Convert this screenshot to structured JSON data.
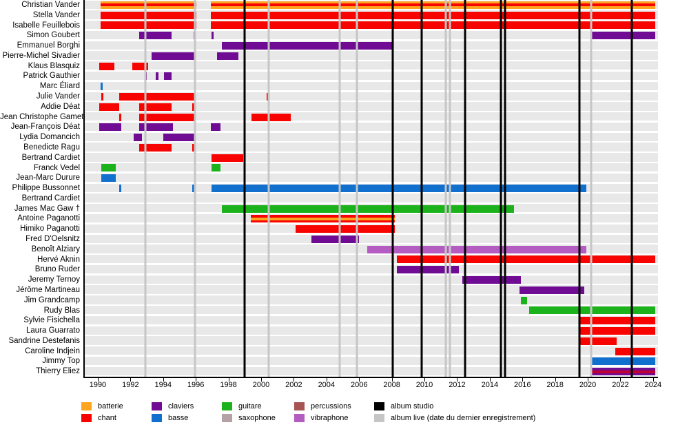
{
  "chart_data": {
    "type": "bar",
    "subtype": "gantt-membership-timeline",
    "title": "",
    "xlabel": "",
    "ylabel": "",
    "x_range": [
      1989.2,
      2024.3
    ],
    "x_ticks": [
      1990,
      1992,
      1994,
      1996,
      1998,
      2000,
      2002,
      2004,
      2006,
      2008,
      2010,
      2012,
      2014,
      2016,
      2018,
      2020,
      2022,
      2024
    ],
    "grid": false,
    "colors": {
      "batterie": "#FFA41E",
      "chant": "#F80400",
      "claviers": "#700B93",
      "basse": "#1170CE",
      "guitare": "#1CB21C",
      "saxophone": "#B4A2A6",
      "percussions": "#A85454",
      "vibraphone": "#B55CC3",
      "chant_dark": "#C10030",
      "album_studio": "#000000",
      "album_live": "#C6C6C6",
      "row_band": "#E8E8E8"
    },
    "members": [
      {
        "name": "Christian Vander",
        "bars": [
          {
            "start": 1990.15,
            "end": 1996.05,
            "instrument": "batterie",
            "stripe": "chant"
          },
          {
            "start": 1996.9,
            "end": 2024.15,
            "instrument": "batterie",
            "stripe": "chant"
          }
        ]
      },
      {
        "name": "Stella Vander",
        "bars": [
          {
            "start": 1990.15,
            "end": 1996.05,
            "instrument": "chant"
          },
          {
            "start": 1996.9,
            "end": 2024.15,
            "instrument": "chant"
          }
        ]
      },
      {
        "name": "Isabelle Feuillebois",
        "bars": [
          {
            "start": 1990.15,
            "end": 1996.05,
            "instrument": "chant"
          },
          {
            "start": 1996.9,
            "end": 2024.15,
            "instrument": "chant"
          }
        ]
      },
      {
        "name": "Simon Goubert",
        "bars": [
          {
            "start": 1992.55,
            "end": 1994.5,
            "instrument": "claviers"
          },
          {
            "start": 1995.85,
            "end": 1996.0,
            "instrument": "claviers"
          },
          {
            "start": 1996.95,
            "end": 1997.1,
            "instrument": "claviers"
          },
          {
            "start": 2020.2,
            "end": 2024.15,
            "instrument": "claviers"
          }
        ]
      },
      {
        "name": "Emmanuel Borghi",
        "bars": [
          {
            "start": 1997.6,
            "end": 2008.1,
            "instrument": "claviers"
          }
        ]
      },
      {
        "name": "Pierre-Michel Sivadier",
        "bars": [
          {
            "start": 1993.3,
            "end": 1995.9,
            "instrument": "claviers"
          },
          {
            "start": 1997.3,
            "end": 1998.6,
            "instrument": "claviers"
          }
        ]
      },
      {
        "name": "Klaus Blasquiz",
        "bars": [
          {
            "start": 1990.1,
            "end": 1991.0,
            "instrument": "chant"
          },
          {
            "start": 1992.1,
            "end": 1993.1,
            "instrument": "chant"
          }
        ]
      },
      {
        "name": "Patrick Gauthier",
        "bars": [
          {
            "start": 1992.85,
            "end": 1993.0,
            "instrument": "claviers"
          },
          {
            "start": 1993.55,
            "end": 1993.7,
            "instrument": "claviers"
          },
          {
            "start": 1994.05,
            "end": 1994.5,
            "instrument": "claviers"
          }
        ]
      },
      {
        "name": "Marc Éliard",
        "bars": [
          {
            "start": 1990.15,
            "end": 1990.3,
            "instrument": "basse"
          }
        ]
      },
      {
        "name": "Julie Vander",
        "bars": [
          {
            "start": 1990.2,
            "end": 1990.32,
            "instrument": "chant"
          },
          {
            "start": 1991.3,
            "end": 1995.9,
            "instrument": "chant"
          },
          {
            "start": 2000.35,
            "end": 2000.5,
            "instrument": "chant"
          }
        ]
      },
      {
        "name": "Addie Déat",
        "bars": [
          {
            "start": 1990.1,
            "end": 1991.3,
            "instrument": "chant"
          },
          {
            "start": 1992.55,
            "end": 1994.5,
            "instrument": "chant"
          },
          {
            "start": 1995.8,
            "end": 1995.95,
            "instrument": "chant"
          }
        ]
      },
      {
        "name": "Jean Christophe Gamet",
        "bars": [
          {
            "start": 1991.3,
            "end": 1991.45,
            "instrument": "chant"
          },
          {
            "start": 1992.55,
            "end": 1995.9,
            "instrument": "chant"
          },
          {
            "start": 1999.4,
            "end": 2001.8,
            "instrument": "chant"
          }
        ]
      },
      {
        "name": "Jean-François Déat",
        "bars": [
          {
            "start": 1990.1,
            "end": 1991.45,
            "instrument": "claviers"
          },
          {
            "start": 1992.55,
            "end": 1994.6,
            "instrument": "claviers"
          },
          {
            "start": 1996.9,
            "end": 1997.5,
            "instrument": "claviers"
          }
        ]
      },
      {
        "name": "Lydia Domancich",
        "bars": [
          {
            "start": 1992.2,
            "end": 1992.7,
            "instrument": "claviers"
          },
          {
            "start": 1994.0,
            "end": 1995.9,
            "instrument": "claviers"
          }
        ]
      },
      {
        "name": "Benedicte Ragu",
        "bars": [
          {
            "start": 1992.55,
            "end": 1994.5,
            "instrument": "chant"
          },
          {
            "start": 1995.8,
            "end": 1995.95,
            "instrument": "chant"
          }
        ]
      },
      {
        "name": "Bertrand Cardiet",
        "bars": [
          {
            "start": 1996.95,
            "end": 1998.9,
            "instrument": "chant"
          }
        ]
      },
      {
        "name": "Franck Vedel",
        "bars": [
          {
            "start": 1990.2,
            "end": 1991.1,
            "instrument": "guitare"
          },
          {
            "start": 1996.95,
            "end": 1997.5,
            "instrument": "guitare"
          }
        ]
      },
      {
        "name": "Jean-Marc Durure",
        "bars": [
          {
            "start": 1990.2,
            "end": 1991.1,
            "instrument": "basse"
          }
        ]
      },
      {
        "name": "Philippe Bussonnet",
        "bars": [
          {
            "start": 1991.3,
            "end": 1991.45,
            "instrument": "basse"
          },
          {
            "start": 1995.8,
            "end": 1995.95,
            "instrument": "basse"
          },
          {
            "start": 1996.95,
            "end": 2019.9,
            "instrument": "basse"
          }
        ]
      },
      {
        "name": "Bertrand Cardiet",
        "bars": []
      },
      {
        "name": "James Mac Gaw  †",
        "bars": [
          {
            "start": 1997.6,
            "end": 2015.5,
            "instrument": "guitare"
          }
        ]
      },
      {
        "name": "Antoine Paganotti",
        "bars": [
          {
            "start": 1999.35,
            "end": 2008.2,
            "instrument": "chant",
            "stripe": "batterie"
          }
        ]
      },
      {
        "name": "Himiko Paganotti",
        "bars": [
          {
            "start": 2002.1,
            "end": 2008.2,
            "instrument": "chant"
          }
        ]
      },
      {
        "name": "Fred D'Oelsnitz",
        "bars": [
          {
            "start": 2003.1,
            "end": 2006.0,
            "instrument": "claviers"
          }
        ]
      },
      {
        "name": "Benoît Alziary",
        "bars": [
          {
            "start": 2006.5,
            "end": 2019.9,
            "instrument": "vibraphone"
          }
        ]
      },
      {
        "name": "Hervé Aknin",
        "bars": [
          {
            "start": 2008.3,
            "end": 2024.15,
            "instrument": "chant"
          }
        ]
      },
      {
        "name": "Bruno Ruder",
        "bars": [
          {
            "start": 2008.3,
            "end": 2012.1,
            "instrument": "claviers"
          }
        ]
      },
      {
        "name": "Jeremy Ternoy",
        "bars": [
          {
            "start": 2012.3,
            "end": 2015.9,
            "instrument": "claviers"
          }
        ]
      },
      {
        "name": "Jérôme Martineau",
        "bars": [
          {
            "start": 2015.8,
            "end": 2019.8,
            "instrument": "claviers"
          }
        ]
      },
      {
        "name": "Jim Grandcamp",
        "bars": [
          {
            "start": 2015.9,
            "end": 2016.3,
            "instrument": "guitare"
          }
        ]
      },
      {
        "name": "Rudy Blas",
        "bars": [
          {
            "start": 2016.4,
            "end": 2024.15,
            "instrument": "guitare"
          }
        ]
      },
      {
        "name": "Sylvie Fisichella",
        "bars": [
          {
            "start": 2019.5,
            "end": 2024.15,
            "instrument": "chant"
          }
        ]
      },
      {
        "name": "Laura Guarrato",
        "bars": [
          {
            "start": 2019.5,
            "end": 2024.15,
            "instrument": "chant"
          }
        ]
      },
      {
        "name": "Sandrine Destefanis",
        "bars": [
          {
            "start": 2019.5,
            "end": 2021.75,
            "instrument": "chant"
          }
        ]
      },
      {
        "name": "Caroline Indjein",
        "bars": [
          {
            "start": 2021.7,
            "end": 2024.15,
            "instrument": "chant"
          }
        ]
      },
      {
        "name": "Jimmy Top",
        "bars": [
          {
            "start": 2020.2,
            "end": 2024.15,
            "instrument": "basse"
          }
        ]
      },
      {
        "name": "Thierry Eliez",
        "bars": [
          {
            "start": 2020.2,
            "end": 2024.15,
            "instrument": "claviers",
            "stripe": "chant_dark"
          }
        ]
      }
    ],
    "albums_studio_years": [
      1999.0,
      2008.05,
      2009.85,
      2012.5,
      2014.7,
      2014.95,
      2019.5,
      2022.7
    ],
    "albums_live_years": [
      1992.9,
      1995.95,
      2000.45,
      2004.8,
      2005.85,
      2011.3,
      2011.55,
      2020.2
    ],
    "legend": {
      "column_lefts": [
        118,
        220,
        322,
        427,
        543
      ],
      "columns": [
        [
          {
            "label": "batterie",
            "color_key": "batterie"
          },
          {
            "label": "chant",
            "color_key": "chant"
          }
        ],
        [
          {
            "label": "claviers",
            "color_key": "claviers"
          },
          {
            "label": "basse",
            "color_key": "basse"
          }
        ],
        [
          {
            "label": "guitare",
            "color_key": "guitare"
          },
          {
            "label": "saxophone",
            "color_key": "saxophone"
          }
        ],
        [
          {
            "label": "percussions",
            "color_key": "percussions"
          },
          {
            "label": "vibraphone",
            "color_key": "vibraphone"
          }
        ],
        [
          {
            "label": "album studio",
            "color_key": "album_studio"
          },
          {
            "label": "album live (date du dernier enregistrement)",
            "color_key": "album_live"
          }
        ]
      ]
    }
  }
}
